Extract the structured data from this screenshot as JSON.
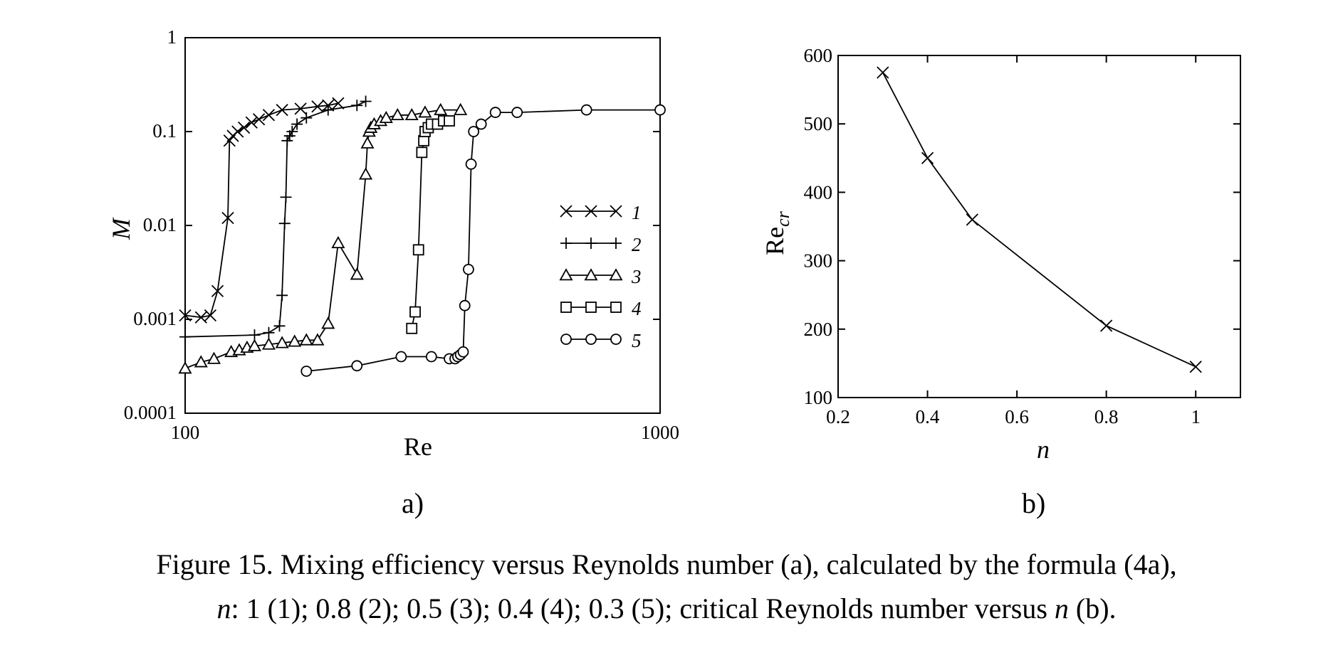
{
  "chart_data": [
    {
      "panel": "a",
      "type": "line",
      "xscale": "log",
      "yscale": "log",
      "xlabel": "Re",
      "ylabel": "M",
      "xlim": [
        100,
        1000
      ],
      "ylim": [
        0.0001,
        1
      ],
      "xticks": [
        "100",
        "1000"
      ],
      "yticks": [
        "0.0001",
        "0.001",
        "0.01",
        "0.1",
        "1"
      ],
      "legend_position": "right",
      "series": [
        {
          "name": "1",
          "marker": "x-cross",
          "x": [
            100,
            108,
            113,
            117,
            123,
            124,
            126,
            129,
            133,
            138,
            143,
            150,
            160,
            175,
            190,
            200,
            210
          ],
          "y": [
            0.0011,
            0.00105,
            0.0011,
            0.002,
            0.012,
            0.08,
            0.09,
            0.1,
            0.11,
            0.125,
            0.135,
            0.15,
            0.17,
            0.175,
            0.185,
            0.19,
            0.2
          ]
        },
        {
          "name": "2",
          "marker": "plus",
          "x": [
            100,
            140,
            150,
            158,
            160,
            162,
            163,
            164,
            166,
            168,
            172,
            180,
            200,
            230,
            240
          ],
          "y": [
            0.00065,
            0.00068,
            0.00072,
            0.00085,
            0.0018,
            0.0105,
            0.02,
            0.08,
            0.09,
            0.1,
            0.12,
            0.14,
            0.17,
            0.19,
            0.21
          ]
        },
        {
          "name": "3",
          "marker": "triangle",
          "x": [
            100,
            108,
            115,
            125,
            130,
            135,
            140,
            150,
            160,
            170,
            180,
            190,
            200,
            210,
            230,
            240,
            242,
            244,
            246,
            250,
            258,
            265,
            280,
            300,
            320,
            345,
            380
          ],
          "y": [
            0.0003,
            0.00035,
            0.00038,
            0.00045,
            0.00047,
            0.0005,
            0.00052,
            0.00054,
            0.00056,
            0.00058,
            0.0006,
            0.0006,
            0.0009,
            0.0065,
            0.003,
            0.035,
            0.075,
            0.1,
            0.11,
            0.12,
            0.13,
            0.14,
            0.15,
            0.15,
            0.16,
            0.17,
            0.17
          ]
        },
        {
          "name": "4",
          "marker": "square",
          "x": [
            300,
            305,
            310,
            315,
            318,
            320,
            325,
            330,
            340,
            350,
            360
          ],
          "y": [
            0.0008,
            0.0012,
            0.0055,
            0.06,
            0.08,
            0.1,
            0.11,
            0.12,
            0.12,
            0.13,
            0.13
          ]
        },
        {
          "name": "5",
          "marker": "circle",
          "x": [
            180,
            230,
            285,
            330,
            360,
            370,
            375,
            380,
            385,
            388,
            395,
            400,
            405,
            420,
            450,
            500,
            700,
            1000
          ],
          "y": [
            0.00028,
            0.00032,
            0.0004,
            0.0004,
            0.00038,
            0.00038,
            0.0004,
            0.00042,
            0.00045,
            0.0014,
            0.0034,
            0.045,
            0.1,
            0.12,
            0.16,
            0.16,
            0.17,
            0.17
          ]
        }
      ]
    },
    {
      "panel": "b",
      "type": "line",
      "xlabel": "n",
      "ylabel": "Re",
      "ylabel_sub": "cr",
      "xlim": [
        0.2,
        1.1
      ],
      "ylim": [
        100,
        600
      ],
      "xticks": [
        "0.2",
        "0.4",
        "0.6",
        "0.8",
        "1"
      ],
      "yticks": [
        "100",
        "200",
        "300",
        "400",
        "500",
        "600"
      ],
      "marker": "x-cross",
      "x": [
        0.3,
        0.4,
        0.5,
        0.8,
        1.0
      ],
      "y": [
        575,
        450,
        360,
        205,
        145
      ]
    }
  ],
  "labels": {
    "panel_a": "a)",
    "panel_b": "b)",
    "caption_line1": "Figure 15. Mixing efficiency versus Reynolds number (a), calculated by the formula (4a),",
    "caption_line2_n": "n",
    "caption_line2_mid": ": 1 (1); 0.8 (2); 0.5 (3); 0.4 (4); 0.3 (5); critical Reynolds number versus ",
    "caption_line2_n2": "n",
    "caption_line2_end": " (b)."
  },
  "colors": {
    "axis_label_a": "#8b3a1a",
    "axis_label_b": "#8b3a1a",
    "legend_text": "#8b3a1a",
    "line": "#000000",
    "frame": "#000000"
  }
}
